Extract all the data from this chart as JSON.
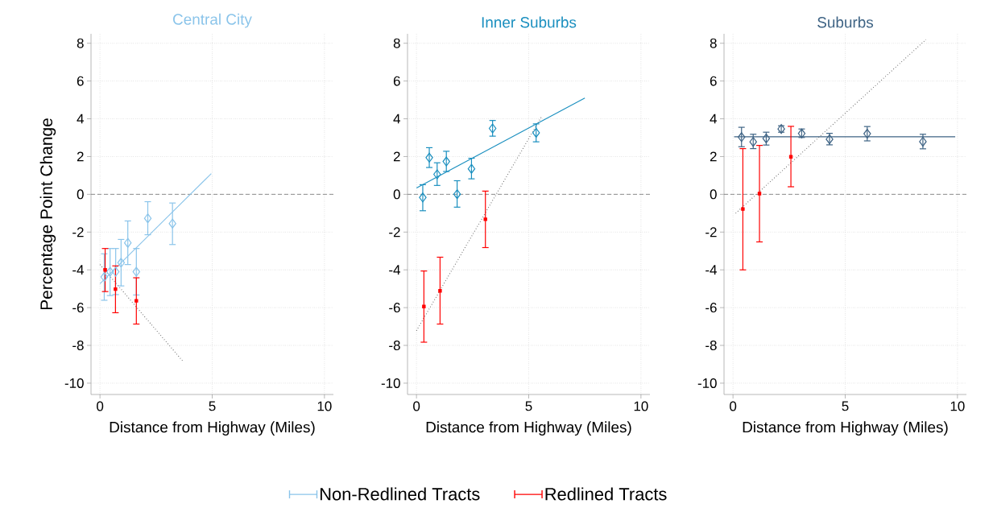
{
  "chart_data": [
    {
      "type": "scatter",
      "title": "Central City",
      "xlabel": "Distance from Highway (Miles)",
      "ylabel": "Percentage Point Change",
      "xlim": [
        -0.4,
        10.4
      ],
      "ylim": [
        -10.6,
        8.5
      ],
      "xticks": [
        0,
        5,
        10
      ],
      "yticks": [
        -10,
        -8,
        -6,
        -4,
        -2,
        0,
        2,
        4,
        6,
        8
      ],
      "grid": true,
      "legend": "bottom",
      "ref_lines": [
        {
          "axis": "y",
          "value": 0,
          "color": "#808080",
          "line_style": "dashed"
        }
      ],
      "series": [
        {
          "name": "Non-Redlined Tracts",
          "color": "#8ac4ea",
          "marker": "diamond",
          "x": [
            0.19,
            0.45,
            0.7,
            0.94,
            1.24,
            1.62,
            2.13,
            3.23
          ],
          "values": [
            -4.38,
            -4.1,
            -4.1,
            -3.62,
            -2.57,
            -4.1,
            -1.27,
            -1.55
          ],
          "errors": [
            [
              -5.61,
              -3.15
            ],
            [
              -5.36,
              -2.87
            ],
            [
              -5.31,
              -2.87
            ],
            [
              -4.85,
              -2.39
            ],
            [
              -3.72,
              -1.41
            ],
            [
              -5.33,
              -2.87
            ],
            [
              -2.14,
              -0.39
            ],
            [
              -2.66,
              -0.46
            ]
          ]
        },
        {
          "type": "line",
          "color": "#8ac4ea",
          "line_style": "solid",
          "marker": "none",
          "x": [
            0,
            4.96
          ],
          "values": [
            -4.73,
            1.1
          ]
        },
        {
          "name": "Redlined Tracts",
          "color": "#ff0000",
          "marker": "square",
          "x": [
            0.23,
            0.69,
            1.62
          ],
          "values": [
            -4.0,
            -5.02,
            -5.64
          ],
          "errors": [
            [
              -5.15,
              -2.87
            ],
            [
              -6.27,
              -3.79
            ],
            [
              -6.87,
              -4.42
            ]
          ]
        },
        {
          "type": "line",
          "color": "#555555",
          "line_style": "dotted",
          "marker": "none",
          "x": [
            0,
            3.7
          ],
          "values": [
            -3.72,
            -8.85
          ]
        }
      ]
    },
    {
      "type": "scatter",
      "title": "Inner Suburbs",
      "xlabel": "Distance from Highway (Miles)",
      "xlim": [
        -0.4,
        10.4
      ],
      "ylim": [
        -10.6,
        8.5
      ],
      "xticks": [
        0,
        5,
        10
      ],
      "yticks": [
        -10,
        -8,
        -6,
        -4,
        -2,
        0,
        2,
        4,
        6,
        8
      ],
      "grid": true,
      "ref_lines": [
        {
          "axis": "y",
          "value": 0,
          "color": "#808080",
          "line_style": "dashed"
        }
      ],
      "series": [
        {
          "color": "#1a8fbf",
          "marker": "diamond",
          "x": [
            0.28,
            0.57,
            0.92,
            1.33,
            1.81,
            2.45,
            3.39,
            5.33
          ],
          "values": [
            -0.17,
            1.94,
            1.06,
            1.74,
            0.01,
            1.35,
            3.49,
            3.26
          ],
          "errors": [
            [
              -0.87,
              0.51
            ],
            [
              1.42,
              2.47
            ],
            [
              0.47,
              1.67
            ],
            [
              1.21,
              2.28
            ],
            [
              -0.68,
              0.72
            ],
            [
              0.82,
              1.91
            ],
            [
              3.08,
              3.91
            ],
            [
              2.78,
              3.73
            ]
          ]
        },
        {
          "type": "line",
          "color": "#1a8fbf",
          "line_style": "solid",
          "marker": "none",
          "x": [
            0,
            7.5
          ],
          "values": [
            0.34,
            5.1
          ]
        },
        {
          "color": "#ff0000",
          "marker": "square",
          "x": [
            0.33,
            1.05,
            3.07
          ],
          "values": [
            -5.94,
            -5.11,
            -1.32
          ],
          "errors": [
            [
              -7.83,
              -4.06
            ],
            [
              -6.87,
              -3.33
            ],
            [
              -2.82,
              0.17
            ]
          ]
        },
        {
          "type": "line",
          "color": "#555555",
          "line_style": "dotted",
          "marker": "none",
          "x": [
            0,
            5.6
          ],
          "values": [
            -7.22,
            4.17
          ]
        }
      ]
    },
    {
      "type": "scatter",
      "title": "Suburbs",
      "xlabel": "Distance from Highway (Miles)",
      "xlim": [
        -0.4,
        10.4
      ],
      "ylim": [
        -10.6,
        8.5
      ],
      "xticks": [
        0,
        5,
        10
      ],
      "yticks": [
        -10,
        -8,
        -6,
        -4,
        -2,
        0,
        2,
        4,
        6,
        8
      ],
      "grid": true,
      "ref_lines": [
        {
          "axis": "y",
          "value": 0,
          "color": "#808080",
          "line_style": "dashed"
        }
      ],
      "series": [
        {
          "color": "#3e6384",
          "marker": "diamond",
          "x": [
            0.38,
            0.9,
            1.48,
            2.15,
            3.06,
            4.3,
            5.98,
            8.46
          ],
          "values": [
            3.03,
            2.78,
            2.96,
            3.46,
            3.22,
            2.92,
            3.21,
            2.79
          ],
          "errors": [
            [
              2.52,
              3.55
            ],
            [
              2.42,
              3.18
            ],
            [
              2.61,
              3.29
            ],
            [
              3.29,
              3.63
            ],
            [
              3.01,
              3.46
            ],
            [
              2.62,
              3.23
            ],
            [
              2.83,
              3.59
            ],
            [
              2.41,
              3.18
            ]
          ]
        },
        {
          "type": "line",
          "color": "#3e6384",
          "line_style": "solid",
          "marker": "none",
          "x": [
            0.05,
            9.9
          ],
          "values": [
            3.05,
            3.05
          ]
        },
        {
          "color": "#ff0000",
          "marker": "square",
          "x": [
            0.44,
            1.18,
            2.58
          ],
          "values": [
            -0.78,
            0.04,
            1.99
          ],
          "errors": [
            [
              -4.0,
              2.42
            ],
            [
              -2.52,
              2.59
            ],
            [
              0.4,
              3.6
            ]
          ]
        },
        {
          "type": "line",
          "color": "#555555",
          "line_style": "dotted",
          "marker": "none",
          "x": [
            0.12,
            8.6
          ],
          "values": [
            -1.0,
            8.2
          ]
        }
      ]
    }
  ]
}
